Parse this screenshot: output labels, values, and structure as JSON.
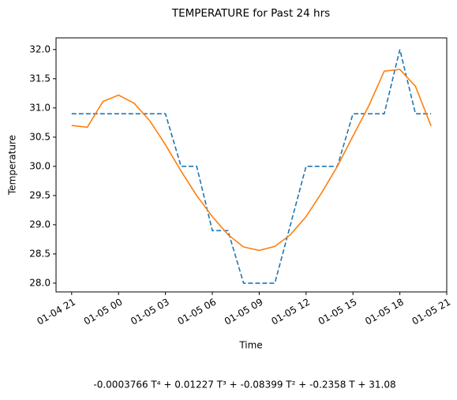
{
  "chart_data": {
    "type": "line",
    "title": "TEMPERATURE for Past 24 hrs",
    "xlabel": "Time",
    "ylabel": "Temperature",
    "annotation": "-0.0003766 T⁴ + 0.01227 T³ + -0.08399 T² + -0.2358 T + 31.08",
    "x": [
      "01-04 21",
      "01-04 22",
      "01-04 23",
      "01-05 00",
      "01-05 01",
      "01-05 02",
      "01-05 03",
      "01-05 04",
      "01-05 05",
      "01-05 06",
      "01-05 07",
      "01-05 08",
      "01-05 09",
      "01-05 10",
      "01-05 11",
      "01-05 12",
      "01-05 13",
      "01-05 14",
      "01-05 15",
      "01-05 16",
      "01-05 17",
      "01-05 18",
      "01-05 19",
      "01-05 20"
    ],
    "series": [
      {
        "color": "#1f77b4",
        "linestyle": "dashed",
        "values": [
          30.9,
          30.9,
          30.9,
          30.9,
          30.9,
          30.9,
          30.9,
          30.0,
          30.0,
          28.9,
          28.9,
          28.0,
          28.0,
          28.0,
          29.0,
          30.0,
          30.0,
          30.0,
          30.9,
          30.9,
          30.9,
          32.0,
          30.9,
          30.9
        ]
      },
      {
        "color": "#ff7f0e",
        "linestyle": "solid",
        "values": [
          30.7,
          30.67,
          31.11,
          31.22,
          31.08,
          30.78,
          30.37,
          29.92,
          29.5,
          29.14,
          28.83,
          28.62,
          28.56,
          28.63,
          28.83,
          29.14,
          29.55,
          30.0,
          30.52,
          31.03,
          31.63,
          31.66,
          31.37,
          30.69
        ]
      }
    ],
    "xlim": [
      "01-04 20",
      "01-05 21"
    ],
    "xticks": [
      "01-04 21",
      "01-05 00",
      "01-05 03",
      "01-05 06",
      "01-05 09",
      "01-05 12",
      "01-05 15",
      "01-05 18",
      "01-05 21"
    ],
    "ylim": [
      27.85,
      32.2
    ],
    "yticks": [
      {
        "value": 28,
        "label": "28.0"
      },
      {
        "value": 28.5,
        "label": "28.5"
      },
      {
        "value": 29,
        "label": "29.0"
      },
      {
        "value": 29.5,
        "label": "29.5"
      },
      {
        "value": 30,
        "label": "30.0"
      },
      {
        "value": 30.5,
        "label": "30.5"
      },
      {
        "value": 31,
        "label": "31.0"
      },
      {
        "value": 31.5,
        "label": "31.5"
      },
      {
        "value": 32,
        "label": "32.0"
      }
    ],
    "grid": false
  }
}
